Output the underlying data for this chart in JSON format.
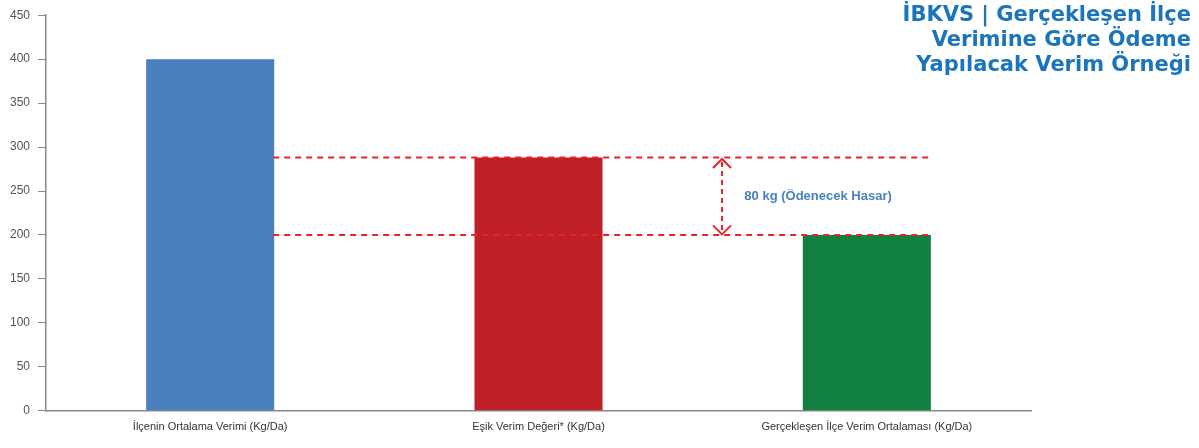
{
  "chart_data": {
    "type": "bar",
    "title": "İBKVS | Gerçekleşen İlçe Verimine Göre Ödeme Yapılacak Verim Örneği",
    "categories": [
      "İlçenin Ortalama Verimi (Kg/Da)",
      "Eşik Verim Değeri* (Kg/Da)",
      "Gerçekleşen İlçe Verim Ortalaması (Kg/Da)"
    ],
    "values": [
      400,
      288,
      200
    ],
    "colors": [
      "#4a80c0",
      "#bf1f26",
      "#118040"
    ],
    "ylim": [
      0,
      450
    ],
    "yticks": [
      0,
      50,
      100,
      150,
      200,
      250,
      300,
      350,
      400,
      450
    ],
    "grid": false,
    "legend": false,
    "ref_lines": [
      {
        "axis": "y",
        "value": 288,
        "color": "#e8232a",
        "line_style": "dashed"
      },
      {
        "axis": "y",
        "value": 200,
        "color": "#e8232a",
        "line_style": "dashed"
      }
    ],
    "annotations": [
      "80 kg (Ödenecek Hasar)"
    ]
  }
}
